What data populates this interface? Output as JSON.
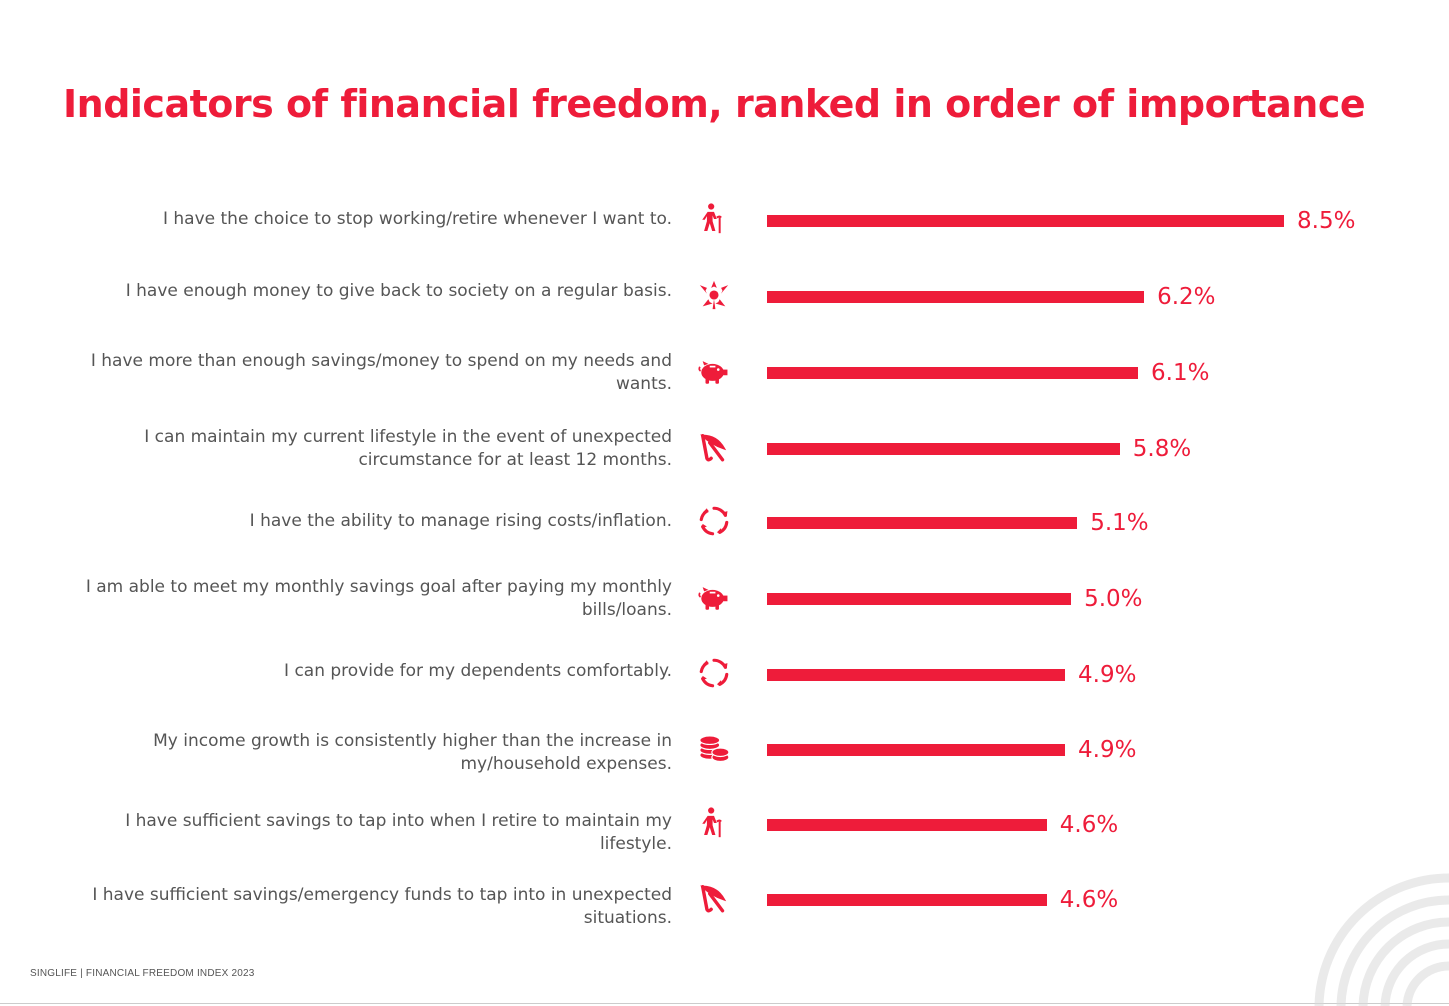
{
  "title": "Indicators of financial freedom, ranked in order of importance",
  "footer": "SINGLIFE | FINANCIAL FREEDOM INDEX 2023",
  "accent_color": "#ee1c3a",
  "chart_data": {
    "type": "bar",
    "orientation": "horizontal",
    "title": "Indicators of financial freedom, ranked in order of importance",
    "unit": "%",
    "xlim": [
      0,
      8.5
    ],
    "categories": [
      "I have the choice to stop working/retire whenever I want to.",
      "I have enough money to give back to society on a regular basis.",
      "I have more than enough savings/money to spend on my needs and wants.",
      "I can maintain my current lifestyle in the event of unexpected circumstance for at least 12 months.",
      "I have the ability to manage rising costs/inflation.",
      "I am able to meet my monthly savings goal after paying my monthly bills/loans.",
      "I can provide for my dependents comfortably.",
      "My income growth is consistently higher than the increase in my/household expenses.",
      "I have sufficient savings to tap into when I retire to maintain my lifestyle.",
      "I have sufficient savings/emergency funds to tap into in unexpected situations."
    ],
    "values": [
      8.5,
      6.2,
      6.1,
      5.8,
      5.1,
      5.0,
      4.9,
      4.9,
      4.6,
      4.6
    ],
    "value_labels": [
      "8.5%",
      "6.2%",
      "6.1%",
      "5.8%",
      "5.1%",
      "5.0%",
      "4.9%",
      "4.9%",
      "4.6%",
      "4.6%"
    ],
    "icons": [
      "elderly-person-icon",
      "charity-hands-icon",
      "piggy-bank-icon",
      "umbrella-icon",
      "cycle-arrows-icon",
      "piggy-bank-icon",
      "cycle-arrows-icon",
      "coin-stack-icon",
      "elderly-person-icon",
      "umbrella-icon"
    ]
  }
}
